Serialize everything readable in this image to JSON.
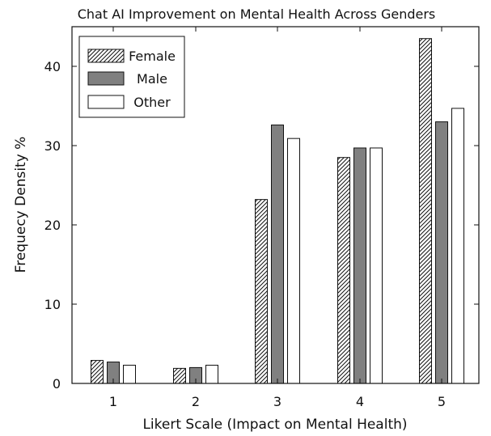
{
  "chart_data": {
    "type": "bar",
    "title": "Chat AI Improvement on Mental Health Across Genders",
    "xlabel": "Likert Scale (Impact on Mental Health)",
    "ylabel": "Frequecy Density %",
    "categories": [
      "1",
      "2",
      "3",
      "4",
      "5"
    ],
    "ylim": [
      0,
      45
    ],
    "yticks": [
      0,
      10,
      20,
      30,
      40
    ],
    "grid": false,
    "legend_position": "top-left",
    "series": [
      {
        "name": "Female",
        "style": "hatched",
        "color": "#ffffff",
        "values": [
          2.9,
          1.9,
          23.2,
          28.5,
          43.5
        ]
      },
      {
        "name": "Male",
        "style": "solid",
        "color": "#808080",
        "values": [
          2.7,
          2.0,
          32.6,
          29.7,
          33.0
        ]
      },
      {
        "name": "Other",
        "style": "solid",
        "color": "#ffffff",
        "values": [
          2.3,
          2.3,
          30.9,
          29.7,
          34.7
        ]
      }
    ]
  }
}
